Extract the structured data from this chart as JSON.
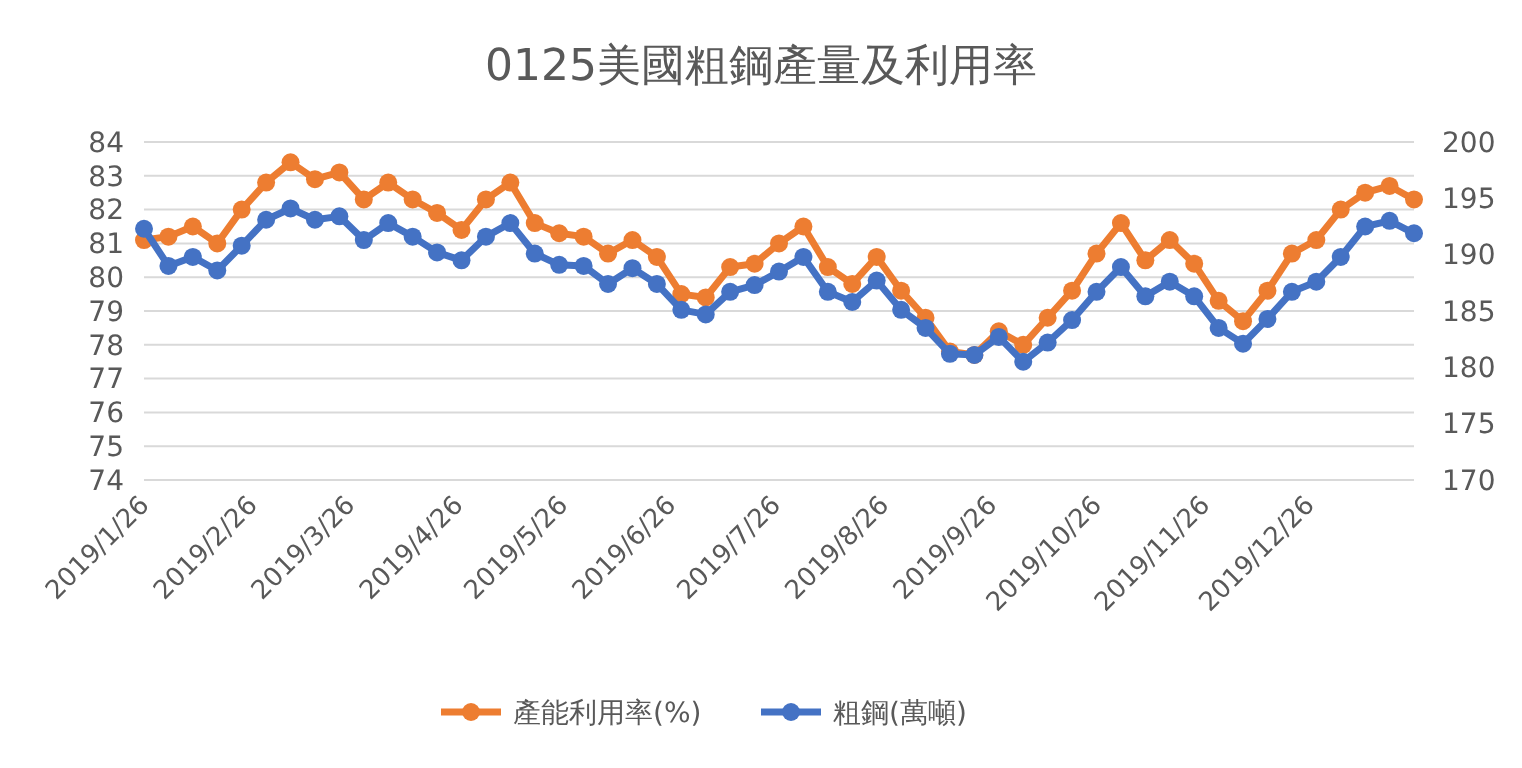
{
  "chart_data": {
    "type": "line",
    "title": "0125美國粗鋼產量及利用率",
    "x": [
      "2019-01-26",
      "2019-02-02",
      "2019-02-09",
      "2019-02-16",
      "2019-02-23",
      "2019-03-02",
      "2019-03-09",
      "2019-03-16",
      "2019-03-23",
      "2019-03-30",
      "2019-04-06",
      "2019-04-13",
      "2019-04-20",
      "2019-04-27",
      "2019-05-04",
      "2019-05-11",
      "2019-05-18",
      "2019-05-25",
      "2019-06-01",
      "2019-06-08",
      "2019-06-15",
      "2019-06-22",
      "2019-06-29",
      "2019-07-06",
      "2019-07-13",
      "2019-07-20",
      "2019-07-27",
      "2019-08-03",
      "2019-08-10",
      "2019-08-17",
      "2019-08-24",
      "2019-08-31",
      "2019-09-07",
      "2019-09-14",
      "2019-09-21",
      "2019-09-28",
      "2019-10-05",
      "2019-10-12",
      "2019-10-19",
      "2019-10-26",
      "2019-11-02",
      "2019-11-09",
      "2019-11-16",
      "2019-11-23",
      "2019-11-30",
      "2019-12-07",
      "2019-12-14",
      "2019-12-21",
      "2019-12-28",
      "2020-01-04",
      "2020-01-11",
      "2020-01-18",
      "2020-01-25"
    ],
    "series": [
      {
        "name": "產能利用率(%)",
        "color": "#ed7d31",
        "values": [
          81.1,
          81.2,
          81.5,
          81.0,
          82.0,
          82.8,
          83.4,
          82.9,
          83.1,
          82.3,
          82.8,
          82.3,
          81.9,
          81.4,
          82.3,
          82.8,
          81.6,
          81.3,
          81.2,
          80.7,
          81.1,
          80.6,
          79.5,
          79.4,
          80.3,
          80.4,
          81.0,
          81.5,
          80.3,
          79.8,
          80.6,
          79.6,
          78.8,
          77.8,
          77.7,
          78.4,
          78.0,
          78.8,
          79.6,
          80.7,
          81.6,
          80.5,
          81.1,
          80.4,
          79.3,
          78.7,
          79.6,
          80.7,
          81.1,
          82.0,
          82.5,
          82.7,
          82.3
        ]
      },
      {
        "name": "粗鋼(萬噸)",
        "color": "#4472c4",
        "axis": "y2",
        "values": [
          192.3,
          189.0,
          189.8,
          188.6,
          190.8,
          193.1,
          194.1,
          193.1,
          193.4,
          191.3,
          192.8,
          191.6,
          190.2,
          189.5,
          191.6,
          192.8,
          190.1,
          189.1,
          189.0,
          187.4,
          188.8,
          187.4,
          185.1,
          184.7,
          186.7,
          187.3,
          188.5,
          189.8,
          186.7,
          185.8,
          187.7,
          185.1,
          183.5,
          181.2,
          181.1,
          182.7,
          180.5,
          182.2,
          184.2,
          186.7,
          188.9,
          186.3,
          187.6,
          186.3,
          183.5,
          182.1,
          184.3,
          186.7,
          187.6,
          189.8,
          192.5,
          193.0,
          191.9
        ]
      }
    ],
    "xlim": [
      "2019-01-26",
      "2020-01-25"
    ],
    "xticks": [
      {
        "value": "2019-01-26",
        "label": "2019/1/26"
      },
      {
        "value": "2019-02-26",
        "label": "2019/2/26"
      },
      {
        "value": "2019-03-26",
        "label": "2019/3/26"
      },
      {
        "value": "2019-04-26",
        "label": "2019/4/26"
      },
      {
        "value": "2019-05-26",
        "label": "2019/5/26"
      },
      {
        "value": "2019-06-26",
        "label": "2019/6/26"
      },
      {
        "value": "2019-07-26",
        "label": "2019/7/26"
      },
      {
        "value": "2019-08-26",
        "label": "2019/8/26"
      },
      {
        "value": "2019-09-26",
        "label": "2019/9/26"
      },
      {
        "value": "2019-10-26",
        "label": "2019/10/26"
      },
      {
        "value": "2019-11-26",
        "label": "2019/11/26"
      },
      {
        "value": "2019-12-26",
        "label": "2019/12/26"
      }
    ],
    "ylim": [
      74,
      84
    ],
    "yticks": [
      74,
      75,
      76,
      77,
      78,
      79,
      80,
      81,
      82,
      83,
      84
    ],
    "y2lim": [
      170,
      200
    ],
    "y2ticks": [
      170,
      175,
      180,
      185,
      190,
      195,
      200
    ],
    "grid": "y",
    "legend": "bottom",
    "marker": "circle",
    "line_style": "solid"
  }
}
